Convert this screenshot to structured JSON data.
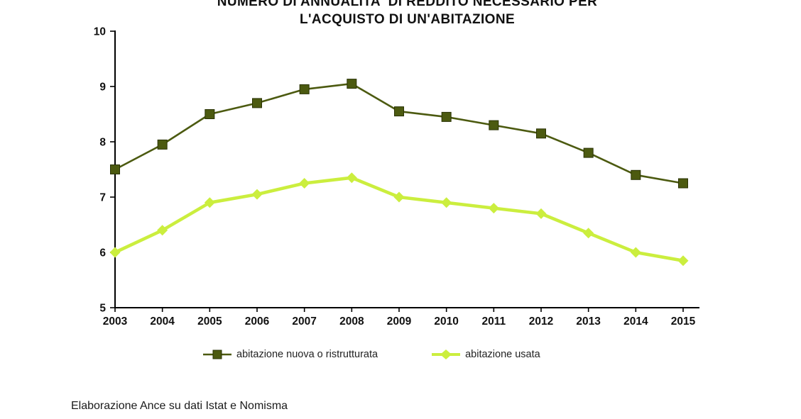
{
  "title": {
    "line1": "NUMERO DI ANNUALITA' DI REDDITO NECESSARIO PER",
    "line2": "L'ACQUISTO DI UN'ABITAZIONE"
  },
  "source_note": "Elaborazione Ance su dati Istat e Nomisma",
  "colors": {
    "new_home_series": "#4c5a10",
    "used_home_series": "#cbee3e",
    "axis": "#000000",
    "text": "#111111"
  },
  "chart_data": {
    "type": "line",
    "title": "NUMERO DI ANNUALITA' DI REDDITO NECESSARIO PER L'ACQUISTO DI UN'ABITAZIONE",
    "categories": [
      "2003",
      "2004",
      "2005",
      "2006",
      "2007",
      "2008",
      "2009",
      "2010",
      "2011",
      "2012",
      "2013",
      "2014",
      "2015"
    ],
    "series": [
      {
        "name": "abitazione nuova o ristrutturata",
        "color": "#4c5a10",
        "marker": "square",
        "values": [
          7.5,
          7.95,
          8.5,
          8.7,
          8.95,
          9.05,
          8.55,
          8.45,
          8.3,
          8.15,
          7.8,
          7.4,
          7.25
        ]
      },
      {
        "name": "abitazione usata",
        "color": "#cbee3e",
        "marker": "diamond",
        "values": [
          6.0,
          6.4,
          6.9,
          7.05,
          7.25,
          7.35,
          7.0,
          6.9,
          6.8,
          6.7,
          6.35,
          6.0,
          5.85
        ]
      }
    ],
    "xlabel": "",
    "ylabel": "",
    "ylim": [
      5,
      10
    ],
    "yticks": [
      10,
      9,
      8,
      7,
      6,
      5
    ],
    "grid": false,
    "legend_position": "bottom"
  }
}
